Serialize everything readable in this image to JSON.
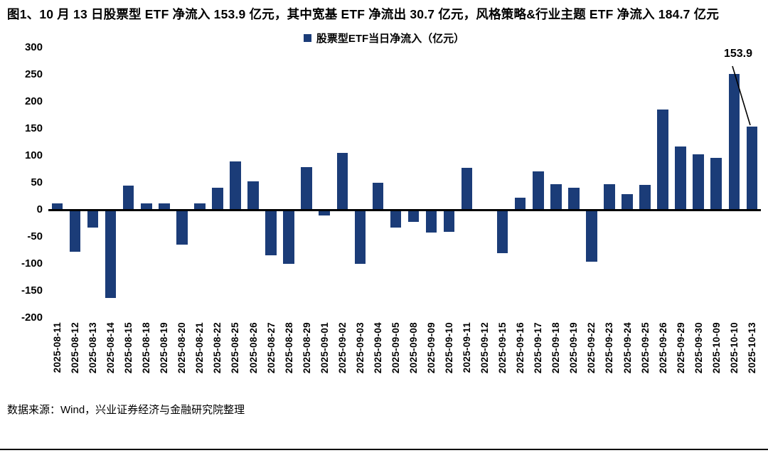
{
  "title": {
    "text": "图1、10 月 13 日股票型 ETF 净流入 153.9 亿元，其中宽基 ETF 净流出 30.7 亿元，风格策略&行业主题 ETF 净流入 184.7 亿元"
  },
  "footer": {
    "source": "数据来源：Wind，兴业证券经济与金融研究院整理"
  },
  "chart_data": {
    "type": "bar",
    "legend_label": "股票型ETF当日净流入（亿元）",
    "categories": [
      "2025-08-11",
      "2025-08-12",
      "2025-08-13",
      "2025-08-14",
      "2025-08-15",
      "2025-08-18",
      "2025-08-19",
      "2025-08-20",
      "2025-08-21",
      "2025-08-22",
      "2025-08-25",
      "2025-08-26",
      "2025-08-27",
      "2025-08-28",
      "2025-08-29",
      "2025-09-01",
      "2025-09-02",
      "2025-09-03",
      "2025-09-04",
      "2025-09-05",
      "2025-09-08",
      "2025-09-09",
      "2025-09-10",
      "2025-09-11",
      "2025-09-12",
      "2025-09-15",
      "2025-09-16",
      "2025-09-17",
      "2025-09-18",
      "2025-09-19",
      "2025-09-22",
      "2025-09-23",
      "2025-09-24",
      "2025-09-25",
      "2025-09-26",
      "2025-09-29",
      "2025-09-30",
      "2025-10-09",
      "2025-10-10",
      "2025-10-13"
    ],
    "values": [
      12,
      -77,
      -32,
      -163,
      45,
      12,
      12,
      -64,
      13,
      41,
      90,
      53,
      -84,
      -100,
      80,
      -10,
      106,
      -100,
      50,
      -33,
      -22,
      -42,
      -40,
      78,
      1,
      -80,
      23,
      72,
      48,
      41,
      -96,
      48,
      29,
      47,
      186,
      118,
      103,
      96,
      252,
      153.9
    ],
    "ylim": [
      -200,
      300
    ],
    "ytick_step": 50,
    "grid": false,
    "legend_position": "top-center",
    "bar_color": "#1B3C78",
    "annotation": {
      "text": "153.9",
      "target_category": "2025-10-13"
    }
  }
}
